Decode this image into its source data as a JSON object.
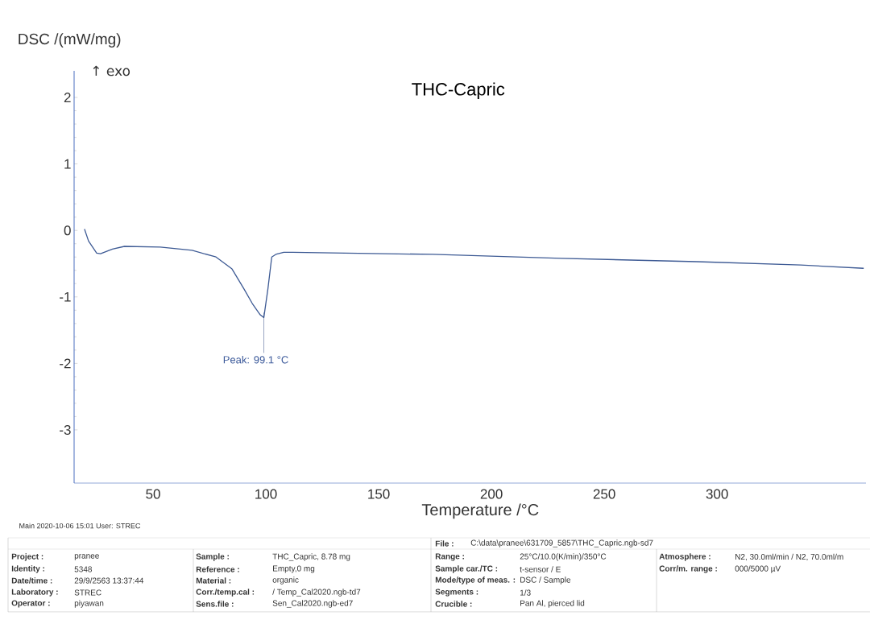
{
  "chart_data": {
    "type": "line",
    "title": "THC-Capric",
    "xlabel": "Temperature /°C",
    "ylabel": "DSC /(mW/mg)",
    "x": [
      19.6,
      21.4,
      25,
      26.7,
      32,
      37.3,
      53.2,
      67.3,
      77.9,
      85,
      90.3,
      94,
      97.5,
      99.1,
      100.9,
      102.6,
      104.4,
      107.9,
      112,
      174,
      231,
      291,
      337,
      365
    ],
    "series": [
      {
        "color": "#3d5a94",
        "values": [
          0.02,
          -0.16,
          -0.34,
          -0.35,
          -0.28,
          -0.24,
          -0.25,
          -0.3,
          -0.4,
          -0.58,
          -0.88,
          -1.1,
          -1.27,
          -1.31,
          -0.88,
          -0.4,
          -0.36,
          -0.33,
          -0.33,
          -0.36,
          -0.42,
          -0.47,
          -0.52,
          -0.57
        ]
      }
    ],
    "xlim": [
      15,
      366
    ],
    "ylim": [
      -3.8,
      2.4
    ],
    "xticks": [
      50,
      100,
      150,
      200,
      250,
      300
    ],
    "yticks": [
      -3,
      -2,
      -1,
      0,
      1,
      2
    ],
    "marker": "none",
    "line_style": "solid",
    "annotations": [
      "↑ exo",
      {
        "text": "Peak: 99.1 °C",
        "x": 99.1,
        "y": -1.31
      },
      "Main  2020-10-06 15:01   User: STREC",
      "File :",
      "C:\\data\\pranee\\631709_5857\\THC_Capric.ngb-sd7",
      "Project :",
      "pranee",
      "Identity :",
      "5348",
      "Date/time :",
      "29/9/2563 13:37:44",
      "Laboratory :",
      "STREC",
      "Operator :",
      "piyawan",
      "Sample :",
      "THC_Capric, 8.78 mg",
      "Reference :",
      "Empty,0 mg",
      "Material :",
      "organic",
      "Corr./temp.cal :",
      "/ Temp_Cal2020.ngb-td7",
      "Sens.file :",
      "Sen_Cal2020.ngb-ed7",
      "Range :",
      "25°C/10.0(K/min)/350°C",
      "Sample car./TC :",
      "t-sensor / E",
      "Mode/type of meas. :",
      "DSC / Sample",
      "Segments :",
      "1/3",
      "Crucible :",
      "Pan Al, pierced lid",
      "Atmosphere :",
      "N2, 30.0ml/min / N2, 70.0ml/m",
      "Corr/m. range :",
      "000/5000 µV"
    ]
  }
}
